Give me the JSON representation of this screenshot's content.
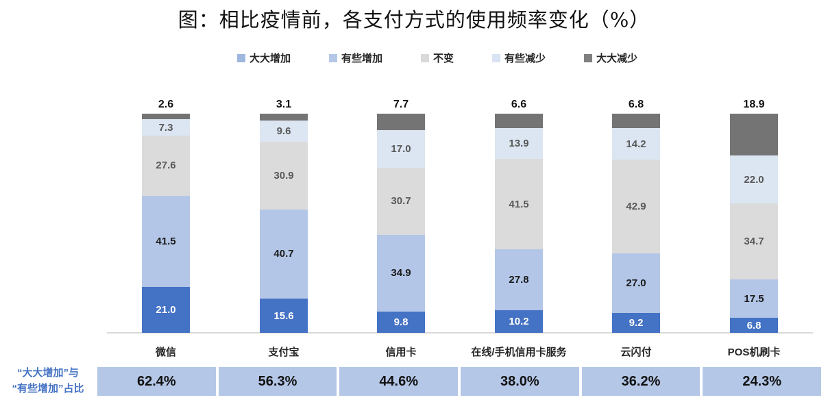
{
  "title": "图：相比疫情前，各支付方式的使用频率变化（%）",
  "chart_data": {
    "type": "bar",
    "stacked": true,
    "orientation": "vertical",
    "unit": "%",
    "ylim": [
      0,
      100
    ],
    "grid": false,
    "legend_position": "top",
    "axis_line_color": "#D9D9D9",
    "categories": [
      "微信",
      "支付宝",
      "信用卡",
      "在线/手机信用卡服务",
      "云闪付",
      "POS机刷卡"
    ],
    "series": [
      {
        "name": "大大增加",
        "color": "#4472C4",
        "legend_color": "#9FB6DF",
        "value_label_color": "#FFFFFF",
        "value_label_position": "inside",
        "values": [
          21.0,
          15.6,
          9.8,
          10.2,
          9.2,
          6.8
        ]
      },
      {
        "name": "有些增加",
        "color": "#B3C6E7",
        "legend_color": "#B4C7E7",
        "value_label_color": "#1A1A1A",
        "value_label_position": "inside",
        "values": [
          41.5,
          40.7,
          34.9,
          27.8,
          27.0,
          17.5
        ]
      },
      {
        "name": "不变",
        "color": "#DBDBDB",
        "legend_color": "#D9D9D9",
        "value_label_color": "#595959",
        "value_label_position": "inside",
        "values": [
          27.6,
          30.9,
          30.7,
          41.5,
          42.9,
          34.7
        ]
      },
      {
        "name": "有些减少",
        "color": "#DCE6F2",
        "legend_color": "#DAE3F3",
        "value_label_color": "#595959",
        "value_label_position": "inside",
        "values": [
          7.3,
          9.6,
          17.0,
          13.9,
          14.2,
          22.0
        ]
      },
      {
        "name": "大大减少",
        "color": "#747474",
        "legend_color": "#7F7F7F",
        "value_label_color": "#111111",
        "value_label_position": "above",
        "values": [
          2.6,
          3.1,
          7.7,
          6.6,
          6.8,
          18.9
        ]
      }
    ],
    "summary_row": {
      "label_line1": "“大大增加”与",
      "label_line2": "“有些增加”占比",
      "label_color": "#4472C4",
      "cell_color": "#B4C7E7",
      "values": [
        "62.4%",
        "56.3%",
        "44.6%",
        "38.0%",
        "36.2%",
        "24.3%"
      ]
    }
  }
}
